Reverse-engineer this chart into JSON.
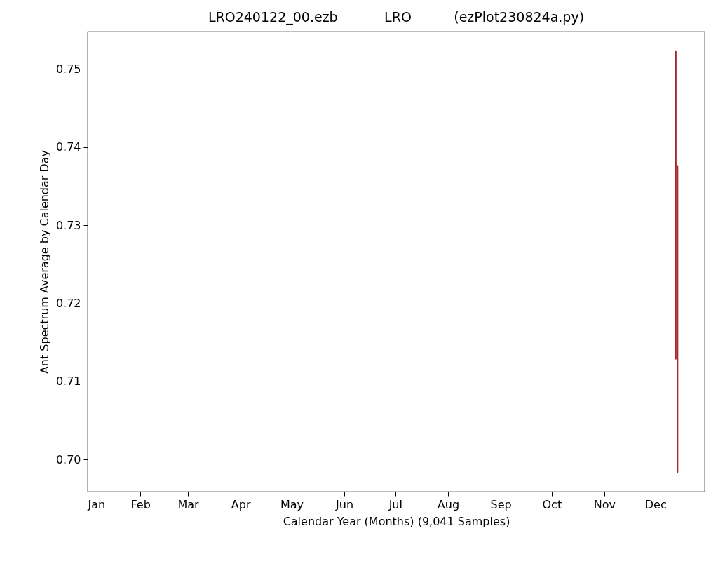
{
  "chart_data": {
    "type": "line",
    "title": "LRO240122_00.ezb           LRO          (ezPlot230824a.py)",
    "xlabel": "Calendar Year (Months) (9,041 Samples)",
    "ylabel": "Ant Spectrum Average by Calendar Day",
    "x": [
      "--12-13",
      "--12-13",
      "--12-13",
      "--12-14",
      "--12-14"
    ],
    "series": [
      {
        "color": "#a52a2a",
        "values": [
          0.7522,
          0.7129,
          0.7376,
          0.7376,
          0.6984
        ]
      }
    ],
    "xlim": [
      "--01-01",
      "--12-30"
    ],
    "xticks": [
      {
        "value": "--01-01",
        "label": "Jan"
      },
      {
        "value": "--02-01",
        "label": "Feb"
      },
      {
        "value": "--03-01",
        "label": "Mar"
      },
      {
        "value": "--04-01",
        "label": "Apr"
      },
      {
        "value": "--05-01",
        "label": "May"
      },
      {
        "value": "--06-01",
        "label": "Jun"
      },
      {
        "value": "--07-01",
        "label": "Jul"
      },
      {
        "value": "--08-01",
        "label": "Aug"
      },
      {
        "value": "--09-01",
        "label": "Sep"
      },
      {
        "value": "--10-01",
        "label": "Oct"
      },
      {
        "value": "--11-01",
        "label": "Nov"
      },
      {
        "value": "--12-01",
        "label": "Dec"
      }
    ],
    "ylim": [
      0.6959,
      0.7548
    ],
    "yticks": [
      {
        "value": 0.7,
        "label": "0.70"
      },
      {
        "value": 0.71,
        "label": "0.71"
      },
      {
        "value": 0.72,
        "label": "0.72"
      },
      {
        "value": 0.73,
        "label": "0.73"
      },
      {
        "value": 0.74,
        "label": "0.74"
      },
      {
        "value": 0.75,
        "label": "0.75"
      }
    ],
    "grid": false
  }
}
